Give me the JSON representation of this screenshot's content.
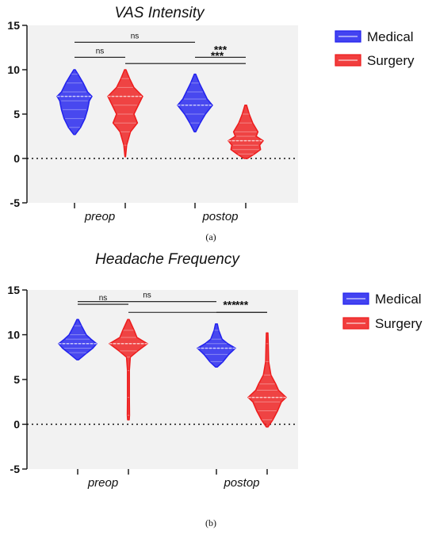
{
  "colors": {
    "Medical": "#2222ee",
    "Surgery": "#ee1c1c",
    "plot_bg": "#f2f2f2"
  },
  "chart_data": [
    {
      "type": "violin",
      "title": "VAS Intensity",
      "panel_label": "(a)",
      "categories": [
        "preop",
        "postop"
      ],
      "ylim": [
        -5,
        15
      ],
      "yticks": [
        -5,
        0,
        5,
        10,
        15
      ],
      "reference_line": 0,
      "legend": "right",
      "series": [
        {
          "name": "Medical",
          "color": "#2222ee",
          "violins": [
            {
              "min": 2.7,
              "max": 10,
              "median": 7,
              "profile": [
                [
                  2.7,
                  0.04
                ],
                [
                  3.5,
                  0.35
                ],
                [
                  4.5,
                  0.6
                ],
                [
                  5.5,
                  0.75
                ],
                [
                  6.5,
                  0.85
                ],
                [
                  7,
                  1.0
                ],
                [
                  7.5,
                  0.75
                ],
                [
                  8.5,
                  0.5
                ],
                [
                  9.5,
                  0.2
                ],
                [
                  10,
                  0.04
                ]
              ]
            },
            {
              "min": 3.0,
              "max": 9.5,
              "median": 6,
              "profile": [
                [
                  3,
                  0.04
                ],
                [
                  4,
                  0.3
                ],
                [
                  5,
                  0.6
                ],
                [
                  6,
                  1.0
                ],
                [
                  6.7,
                  0.7
                ],
                [
                  7.5,
                  0.5
                ],
                [
                  8.5,
                  0.25
                ],
                [
                  9.5,
                  0.04
                ]
              ]
            }
          ]
        },
        {
          "name": "Surgery",
          "color": "#ee1c1c",
          "violins": [
            {
              "min": 0.2,
              "max": 10,
              "median": 7,
              "profile": [
                [
                  0.2,
                  0.02
                ],
                [
                  1.5,
                  0.08
                ],
                [
                  3,
                  0.3
                ],
                [
                  4,
                  0.7
                ],
                [
                  5,
                  0.5
                ],
                [
                  6,
                  0.75
                ],
                [
                  7,
                  1.0
                ],
                [
                  8,
                  0.5
                ],
                [
                  9,
                  0.25
                ],
                [
                  10,
                  0.04
                ]
              ]
            },
            {
              "min": 0,
              "max": 6,
              "median": 2,
              "profile": [
                [
                  0,
                  0.1
                ],
                [
                  0.5,
                  0.5
                ],
                [
                  1,
                  0.85
                ],
                [
                  1.5,
                  0.8
                ],
                [
                  2,
                  1.0
                ],
                [
                  2.5,
                  0.6
                ],
                [
                  3,
                  0.7
                ],
                [
                  4,
                  0.4
                ],
                [
                  5,
                  0.2
                ],
                [
                  6,
                  0.05
                ]
              ]
            }
          ]
        }
      ],
      "comparisons": [
        {
          "from": [
            "Medical",
            "preop"
          ],
          "to": [
            "Surgery",
            "preop"
          ],
          "y": 11.4,
          "label": "ns"
        },
        {
          "from": [
            "Medical",
            "preop"
          ],
          "to": [
            "Medical",
            "postop"
          ],
          "y": 13.1,
          "label": "ns"
        },
        {
          "from": [
            "Surgery",
            "preop"
          ],
          "to": [
            "Surgery",
            "postop"
          ],
          "y": 10.7,
          "label": "***"
        },
        {
          "from": [
            "Medical",
            "postop"
          ],
          "to": [
            "Surgery",
            "postop"
          ],
          "y": 11.4,
          "label": "***"
        }
      ]
    },
    {
      "type": "violin",
      "title": "Headache  Frequency",
      "panel_label": "(b)",
      "categories": [
        "preop",
        "postop"
      ],
      "ylim": [
        -5,
        15
      ],
      "yticks": [
        -5,
        0,
        5,
        10,
        15
      ],
      "reference_line": 0,
      "legend": "right",
      "series": [
        {
          "name": "Medical",
          "color": "#2222ee",
          "violins": [
            {
              "min": 7.2,
              "max": 11.7,
              "median": 9,
              "profile": [
                [
                  7.2,
                  0.05
                ],
                [
                  8,
                  0.5
                ],
                [
                  8.5,
                  0.8
                ],
                [
                  9,
                  1.0
                ],
                [
                  9.5,
                  0.7
                ],
                [
                  10,
                  0.45
                ],
                [
                  11,
                  0.2
                ],
                [
                  11.7,
                  0.04
                ]
              ]
            },
            {
              "min": 6.4,
              "max": 11.2,
              "median": 8.5,
              "profile": [
                [
                  6.4,
                  0.05
                ],
                [
                  7,
                  0.35
                ],
                [
                  7.8,
                  0.65
                ],
                [
                  8.5,
                  1.0
                ],
                [
                  9,
                  0.6
                ],
                [
                  9.5,
                  0.3
                ],
                [
                  10.5,
                  0.12
                ],
                [
                  11.2,
                  0.05
                ]
              ]
            }
          ]
        },
        {
          "name": "Surgery",
          "color": "#ee1c1c",
          "violins": [
            {
              "min": 0.5,
              "max": 11.7,
              "median": 9,
              "profile": [
                [
                  0.5,
                  0.04
                ],
                [
                  1,
                  0.06
                ],
                [
                  3,
                  0.05
                ],
                [
                  6,
                  0.05
                ],
                [
                  7.5,
                  0.1
                ],
                [
                  8.2,
                  0.5
                ],
                [
                  9,
                  1.0
                ],
                [
                  9.7,
                  0.45
                ],
                [
                  10.5,
                  0.3
                ],
                [
                  11.7,
                  0.04
                ]
              ]
            },
            {
              "min": -0.3,
              "max": 10.2,
              "median": 3,
              "profile": [
                [
                  -0.3,
                  0.04
                ],
                [
                  0.5,
                  0.3
                ],
                [
                  1.5,
                  0.55
                ],
                [
                  2.5,
                  0.75
                ],
                [
                  3,
                  1.0
                ],
                [
                  3.8,
                  0.6
                ],
                [
                  4.5,
                  0.45
                ],
                [
                  5.5,
                  0.2
                ],
                [
                  7,
                  0.08
                ],
                [
                  9,
                  0.06
                ],
                [
                  10.2,
                  0.04
                ]
              ]
            }
          ]
        }
      ],
      "comparisons": [
        {
          "from": [
            "Medical",
            "preop"
          ],
          "to": [
            "Surgery",
            "preop"
          ],
          "y": 13.4,
          "label": "ns"
        },
        {
          "from": [
            "Medical",
            "preop"
          ],
          "to": [
            "Medical",
            "postop"
          ],
          "y": 13.7,
          "label": "ns"
        },
        {
          "from": [
            "Surgery",
            "preop"
          ],
          "to": [
            "Surgery",
            "postop"
          ],
          "y": 12.5,
          "label": "***"
        },
        {
          "from": [
            "Medical",
            "postop"
          ],
          "to": [
            "Surgery",
            "postop"
          ],
          "y": 12.5,
          "label": "***"
        }
      ]
    }
  ]
}
